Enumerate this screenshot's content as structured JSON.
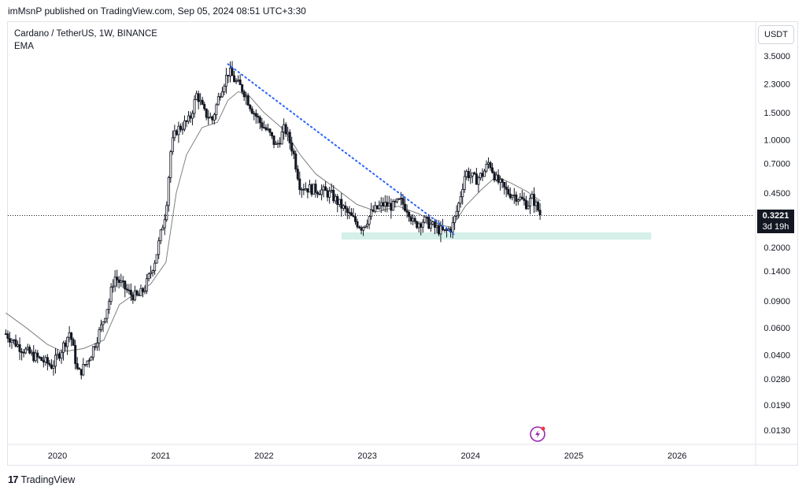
{
  "header": {
    "publisher_text": "imMsnP published on TradingView.com, Sep 05, 2024 08:51 UTC+3:30"
  },
  "legend": {
    "symbol": "Cardano / TetherUS, 1W, BINANCE",
    "indicator": "EMA"
  },
  "scale_button": {
    "label": "USDT"
  },
  "last_price": {
    "value": "0.3221",
    "countdown": "3d 19h"
  },
  "footer": {
    "brand": "TradingView",
    "logo_glyph": "17"
  },
  "colors": {
    "candle": "#131722",
    "ema": "#808080",
    "trendline": "#2962ff",
    "support_zone": "#d4f0e8",
    "axis_text": "#131722",
    "logo_accent": "#9c27b0"
  },
  "chart_data": {
    "type": "candlestick",
    "title": "Cardano / TetherUS, 1W, BINANCE",
    "y_scale": "log",
    "y_ticks": [
      "3.5000",
      "2.3000",
      "1.5000",
      "1.0000",
      "0.7000",
      "0.4500",
      "0.2000",
      "0.1400",
      "0.0900",
      "0.0600",
      "0.0400",
      "0.0280",
      "0.0190",
      "0.0130"
    ],
    "y_tick_values": [
      3.5,
      2.3,
      1.5,
      1.0,
      0.7,
      0.45,
      0.2,
      0.14,
      0.09,
      0.06,
      0.04,
      0.028,
      0.019,
      0.013
    ],
    "x_ticks": [
      "2020",
      "2021",
      "2022",
      "2023",
      "2024",
      "2025",
      "2026"
    ],
    "x_tick_years": [
      2020,
      2021,
      2022,
      2023,
      2024,
      2025,
      2026
    ],
    "x_range": [
      2019.5,
      2026.8
    ],
    "price_path": [
      [
        2019.5,
        0.055
      ],
      [
        2019.62,
        0.046
      ],
      [
        2019.75,
        0.04
      ],
      [
        2019.85,
        0.037
      ],
      [
        2019.95,
        0.034
      ],
      [
        2020.05,
        0.045
      ],
      [
        2020.12,
        0.057
      ],
      [
        2020.2,
        0.03
      ],
      [
        2020.25,
        0.033
      ],
      [
        2020.32,
        0.04
      ],
      [
        2020.42,
        0.06
      ],
      [
        2020.5,
        0.09
      ],
      [
        2020.55,
        0.13
      ],
      [
        2020.62,
        0.115
      ],
      [
        2020.7,
        0.1
      ],
      [
        2020.78,
        0.095
      ],
      [
        2020.85,
        0.11
      ],
      [
        2020.95,
        0.17
      ],
      [
        2021.05,
        0.35
      ],
      [
        2021.1,
        0.9
      ],
      [
        2021.15,
        1.15
      ],
      [
        2021.22,
        1.25
      ],
      [
        2021.28,
        1.35
      ],
      [
        2021.35,
        2.0
      ],
      [
        2021.42,
        1.5
      ],
      [
        2021.5,
        1.35
      ],
      [
        2021.58,
        2.1
      ],
      [
        2021.66,
        2.8
      ],
      [
        2021.72,
        2.4
      ],
      [
        2021.8,
        2.1
      ],
      [
        2021.88,
        1.6
      ],
      [
        2021.96,
        1.3
      ],
      [
        2022.05,
        1.1
      ],
      [
        2022.12,
        0.9
      ],
      [
        2022.2,
        1.2
      ],
      [
        2022.28,
        0.85
      ],
      [
        2022.35,
        0.5
      ],
      [
        2022.45,
        0.48
      ],
      [
        2022.55,
        0.47
      ],
      [
        2022.65,
        0.44
      ],
      [
        2022.75,
        0.37
      ],
      [
        2022.85,
        0.31
      ],
      [
        2022.95,
        0.27
      ],
      [
        2023.05,
        0.34
      ],
      [
        2023.15,
        0.38
      ],
      [
        2023.25,
        0.37
      ],
      [
        2023.32,
        0.4
      ],
      [
        2023.4,
        0.35
      ],
      [
        2023.45,
        0.28
      ],
      [
        2023.55,
        0.3
      ],
      [
        2023.65,
        0.27
      ],
      [
        2023.75,
        0.25
      ],
      [
        2023.82,
        0.27
      ],
      [
        2023.88,
        0.37
      ],
      [
        2023.95,
        0.62
      ],
      [
        2024.05,
        0.55
      ],
      [
        2024.12,
        0.6
      ],
      [
        2024.18,
        0.72
      ],
      [
        2024.25,
        0.55
      ],
      [
        2024.35,
        0.46
      ],
      [
        2024.45,
        0.43
      ],
      [
        2024.55,
        0.38
      ],
      [
        2024.6,
        0.42
      ],
      [
        2024.68,
        0.3221
      ]
    ],
    "ema_path": [
      [
        2019.5,
        0.075
      ],
      [
        2019.7,
        0.06
      ],
      [
        2019.9,
        0.047
      ],
      [
        2020.05,
        0.042
      ],
      [
        2020.25,
        0.044
      ],
      [
        2020.45,
        0.05
      ],
      [
        2020.6,
        0.085
      ],
      [
        2020.75,
        0.1
      ],
      [
        2020.9,
        0.115
      ],
      [
        2021.05,
        0.16
      ],
      [
        2021.15,
        0.45
      ],
      [
        2021.25,
        0.8
      ],
      [
        2021.4,
        1.2
      ],
      [
        2021.55,
        1.3
      ],
      [
        2021.65,
        1.8
      ],
      [
        2021.75,
        2.05
      ],
      [
        2021.85,
        1.95
      ],
      [
        2022.0,
        1.5
      ],
      [
        2022.2,
        1.15
      ],
      [
        2022.35,
        0.8
      ],
      [
        2022.5,
        0.6
      ],
      [
        2022.7,
        0.48
      ],
      [
        2022.9,
        0.38
      ],
      [
        2023.1,
        0.34
      ],
      [
        2023.3,
        0.37
      ],
      [
        2023.5,
        0.33
      ],
      [
        2023.7,
        0.28
      ],
      [
        2023.82,
        0.27
      ],
      [
        2023.95,
        0.37
      ],
      [
        2024.1,
        0.47
      ],
      [
        2024.25,
        0.58
      ],
      [
        2024.4,
        0.52
      ],
      [
        2024.55,
        0.46
      ],
      [
        2024.68,
        0.4
      ]
    ],
    "trendline": {
      "from": [
        2021.65,
        3.1
      ],
      "to": [
        2023.85,
        0.24
      ],
      "style": "dotted"
    },
    "support_zone": {
      "x_range": [
        2022.75,
        2025.75
      ],
      "y_range": [
        0.225,
        0.25
      ]
    },
    "last_price_line": 0.3221,
    "annotations": []
  }
}
